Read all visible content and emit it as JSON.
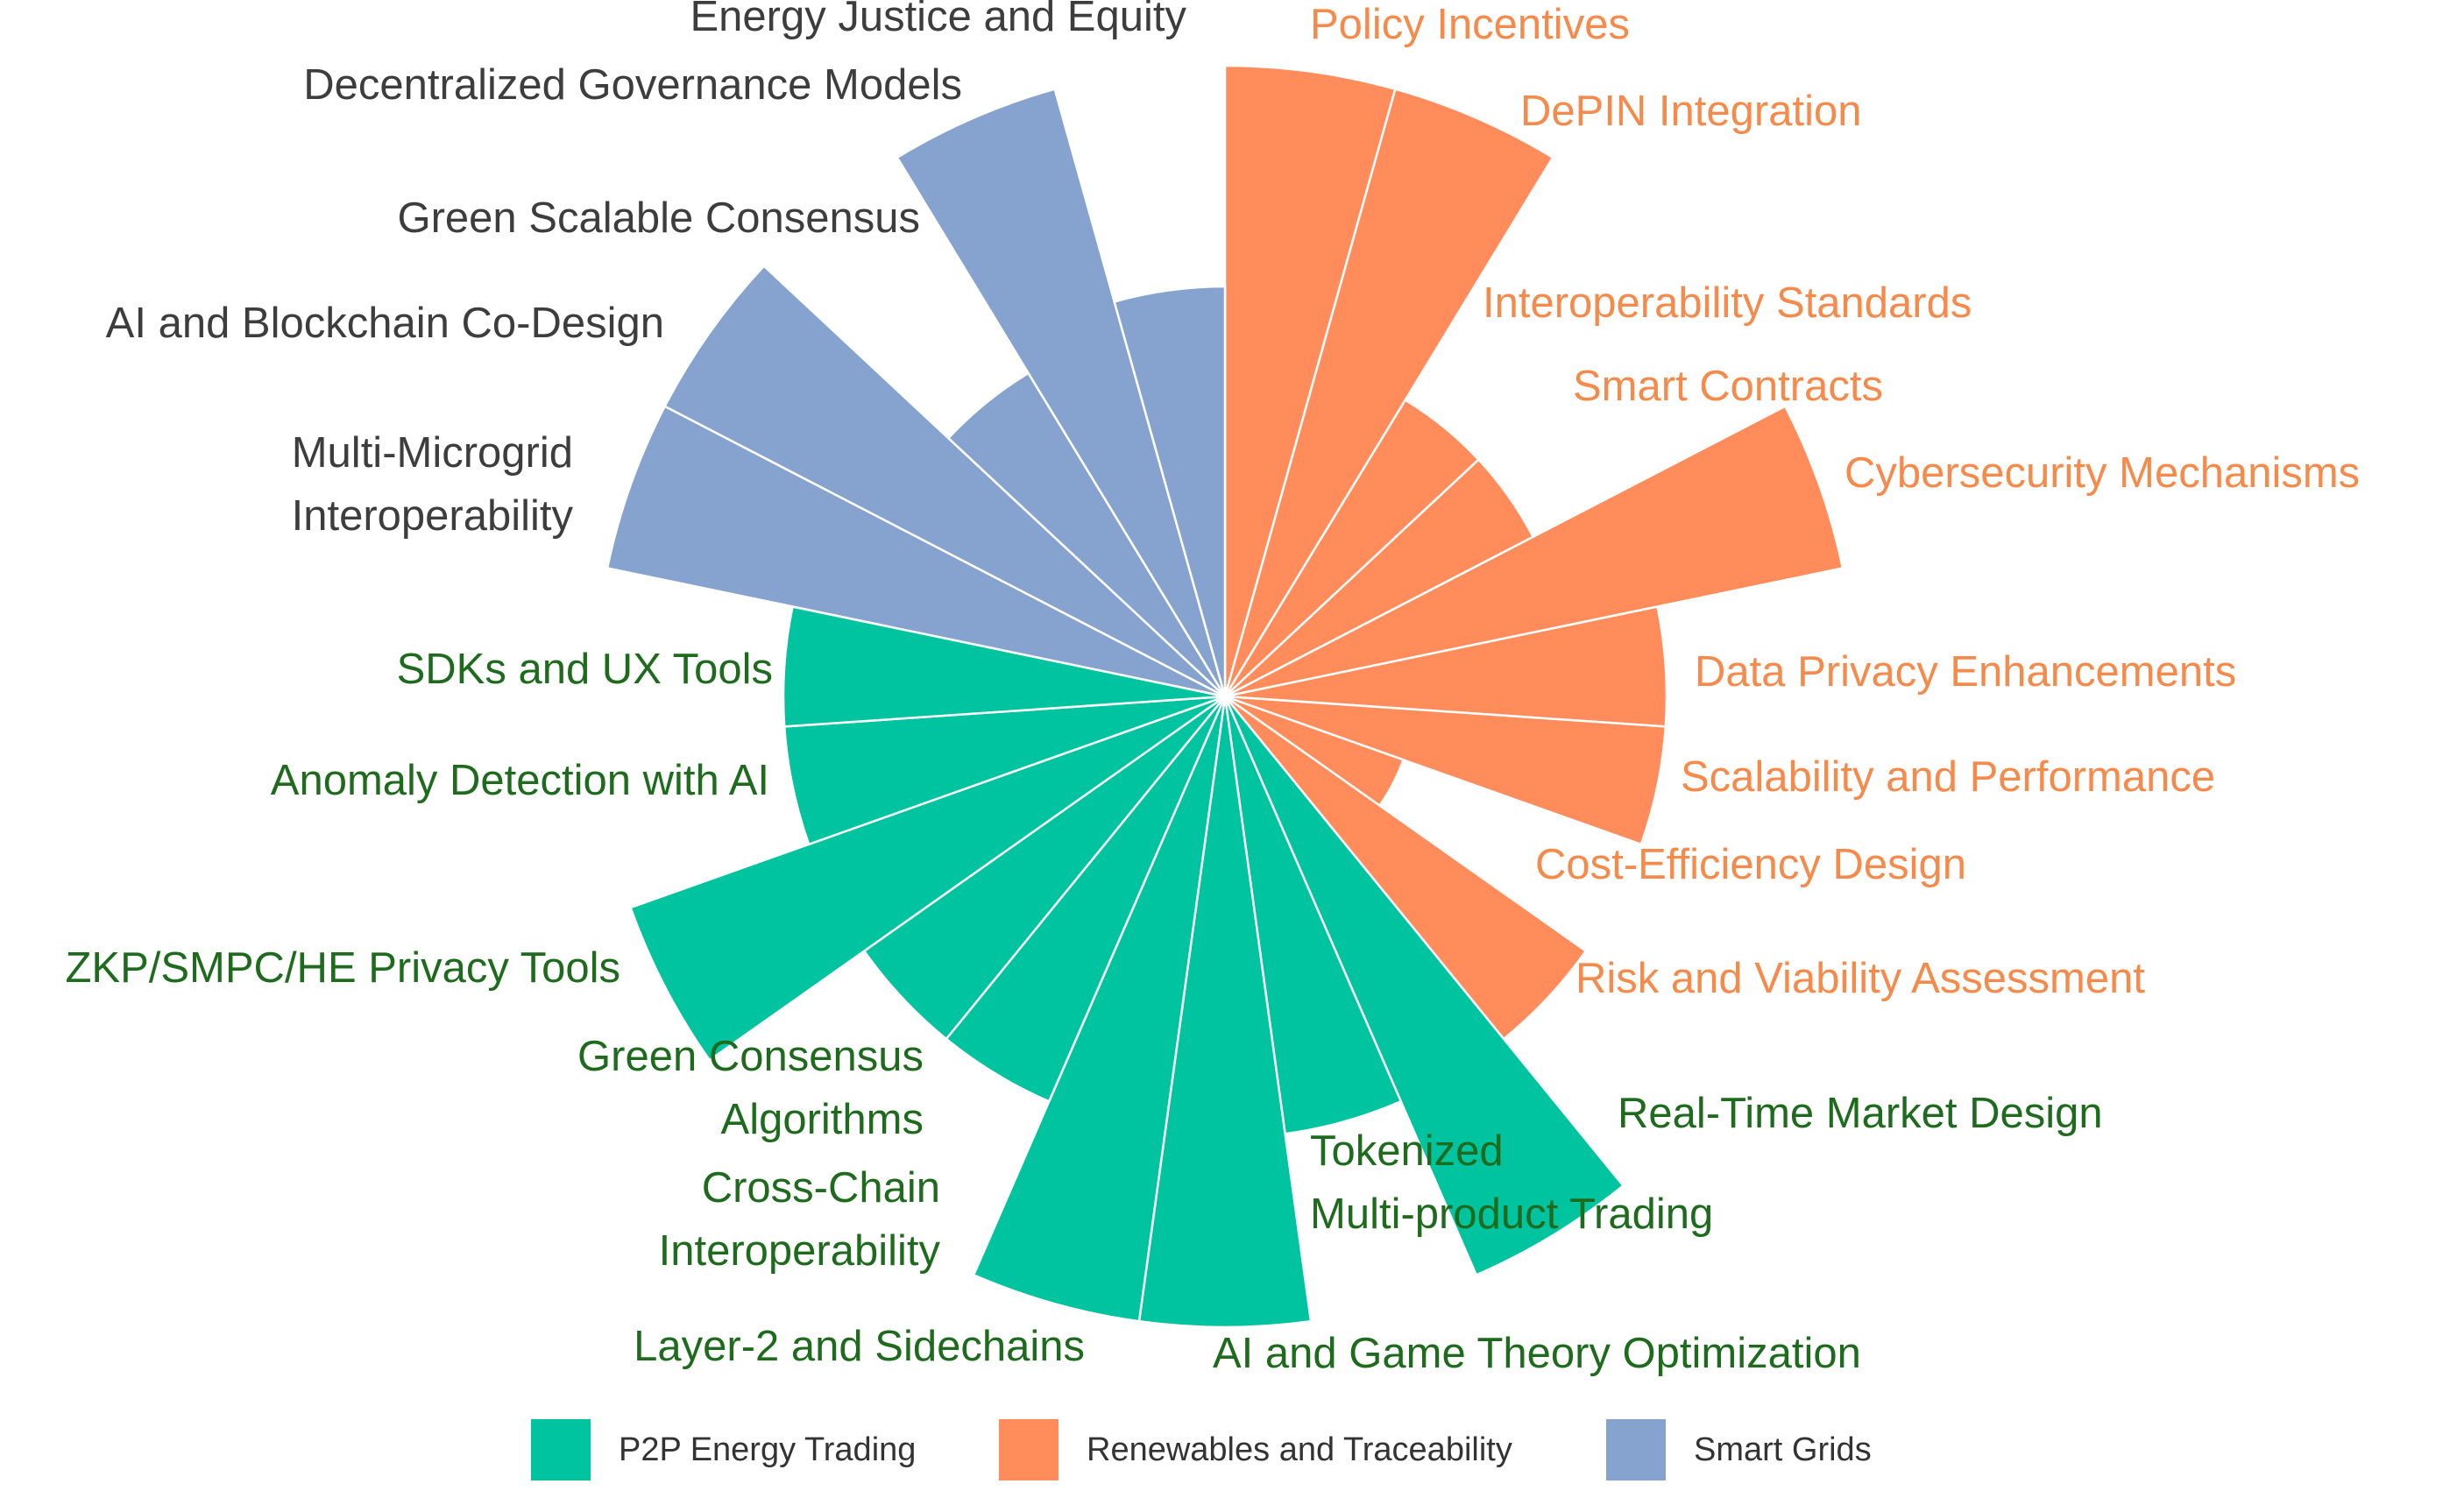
{
  "chart_data": {
    "type": "polar-bar",
    "title": "",
    "legend_placement": "bottom",
    "rmax": 10,
    "series": [
      {
        "name": "P2P Energy Trading",
        "color": "#00c4a0",
        "label_color": "#1e6b1e"
      },
      {
        "name": "Renewables and Traceability",
        "color": "#ff8c5a",
        "label_color": "#f58a4b"
      },
      {
        "name": "Smart Grids",
        "color": "#86a3d0",
        "label_color": "#3d3d3d"
      }
    ],
    "categories": [
      {
        "label": [
          "Policy Incentives"
        ],
        "series": "Renewables and Traceability",
        "value": 10
      },
      {
        "label": [
          "DePIN Integration"
        ],
        "series": "Renewables and Traceability",
        "value": 10
      },
      {
        "label": [
          "Interoperability Standards"
        ],
        "series": "Renewables and Traceability",
        "value": 5.5
      },
      {
        "label": [
          "Smart Contracts"
        ],
        "series": "Renewables and Traceability",
        "value": 5.5
      },
      {
        "label": [
          "Cybersecurity Mechanisms"
        ],
        "series": "Renewables and Traceability",
        "value": 10
      },
      {
        "label": [
          "Data Privacy Enhancements"
        ],
        "series": "Renewables and Traceability",
        "value": 7
      },
      {
        "label": [
          "Scalability and Performance"
        ],
        "series": "Renewables and Traceability",
        "value": 7
      },
      {
        "label": [
          "Cost-Efficiency Design"
        ],
        "series": "Renewables and Traceability",
        "value": 3
      },
      {
        "label": [
          "Risk and Viability Assessment"
        ],
        "series": "Renewables and Traceability",
        "value": 7
      },
      {
        "label": [
          "Real-Time Market Design"
        ],
        "series": "P2P Energy Trading",
        "value": 10
      },
      {
        "label": [
          "Tokenized",
          "Multi-product Trading"
        ],
        "series": "P2P Energy Trading",
        "value": 7
      },
      {
        "label": [
          "AI and Game Theory Optimization"
        ],
        "series": "P2P Energy Trading",
        "value": 10
      },
      {
        "label": [
          "Layer-2 and Sidechains"
        ],
        "series": "P2P Energy Trading",
        "value": 10
      },
      {
        "label": [
          "Cross-Chain",
          "Interoperability"
        ],
        "series": "P2P Energy Trading",
        "value": 7
      },
      {
        "label": [
          "Green Consensus",
          "Algorithms"
        ],
        "series": "P2P Energy Trading",
        "value": 7
      },
      {
        "label": [
          "ZKP/SMPC/HE Privacy Tools"
        ],
        "series": "P2P Energy Trading",
        "value": 10
      },
      {
        "label": [
          "Anomaly Detection with AI"
        ],
        "series": "P2P Energy Trading",
        "value": 7
      },
      {
        "label": [
          "SDKs and UX Tools"
        ],
        "series": "P2P Energy Trading",
        "value": 7
      },
      {
        "label": [
          "Multi-Microgrid",
          "Interoperability"
        ],
        "series": "Smart Grids",
        "value": 10
      },
      {
        "label": [
          "AI and Blockchain Co-Design"
        ],
        "series": "Smart Grids",
        "value": 10
      },
      {
        "label": [
          "Green Scalable Consensus"
        ],
        "series": "Smart Grids",
        "value": 6
      },
      {
        "label": [
          "Decentralized Governance Models"
        ],
        "series": "Smart Grids",
        "value": 10
      },
      {
        "label": [
          "Energy Justice and Equity"
        ],
        "series": "Smart Grids",
        "value": 6.5
      }
    ]
  }
}
